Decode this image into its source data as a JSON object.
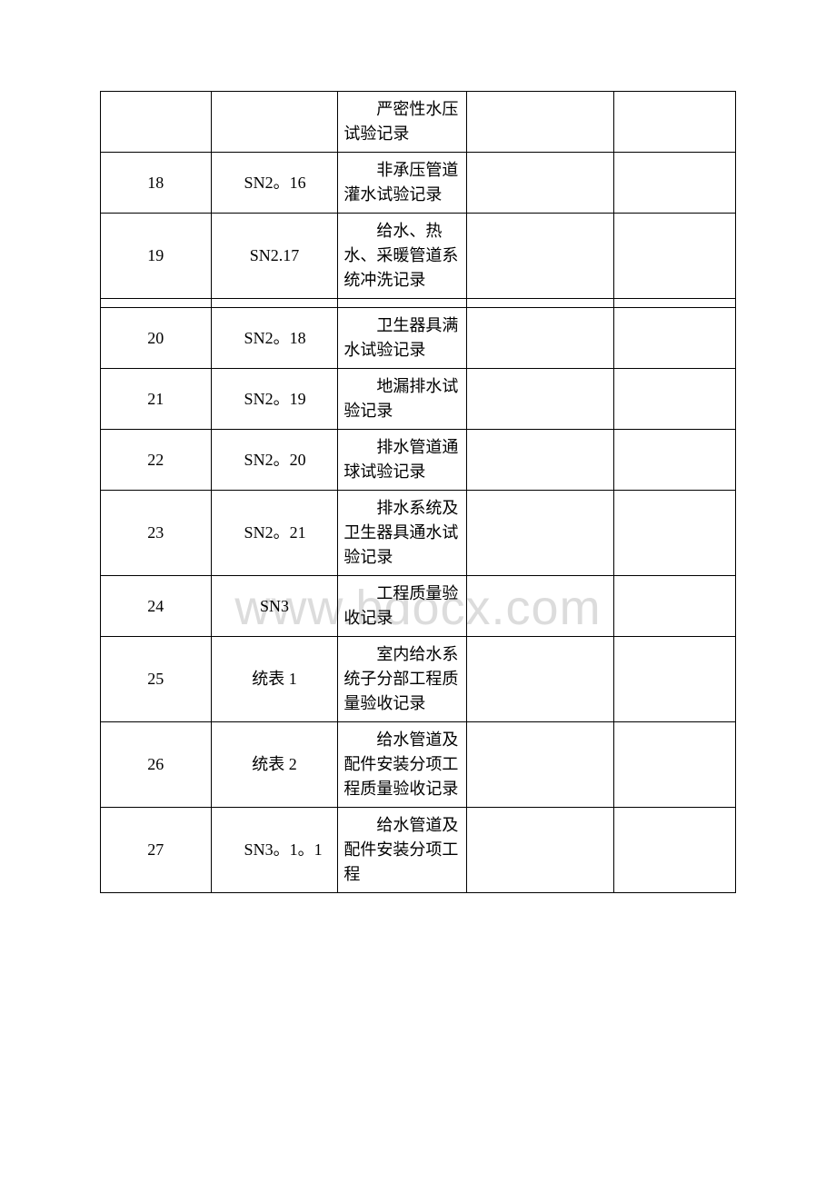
{
  "watermark": "www.bdocx.com",
  "columns": {
    "c1_width": 120,
    "c2_width": 138,
    "c3_width": 140,
    "c4_width": 160,
    "c5_width": 132
  },
  "rows": [
    {
      "n": "",
      "code": "",
      "codeClass": "",
      "desc": "严密性水压试验记录"
    },
    {
      "n": "18",
      "code": "　SN2。16",
      "codeClass": "c2-pad",
      "desc": "非承压管道灌水试验记录"
    },
    {
      "n": "19",
      "code": "SN2.17",
      "codeClass": "c2-center",
      "desc": "给水、热水、采暖管道系统冲洗记录"
    },
    {
      "spacer": true
    },
    {
      "n": "20",
      "code": "　SN2。18",
      "codeClass": "c2-pad",
      "desc": "卫生器具满水试验记录"
    },
    {
      "n": "21",
      "code": "　SN2。19",
      "codeClass": "c2-pad",
      "desc": "地漏排水试验记录"
    },
    {
      "n": "22",
      "code": "　SN2。20",
      "codeClass": "c2-pad",
      "desc": "排水管道通球试验记录"
    },
    {
      "n": "23",
      "code": "　SN2。21",
      "codeClass": "c2-pad",
      "desc": "排水系统及卫生器具通水试验记录"
    },
    {
      "n": "24",
      "code": "SN3",
      "codeClass": "c2-center",
      "desc": "工程质量验收记录"
    },
    {
      "n": "25",
      "code": "统表 1",
      "codeClass": "c2-center",
      "desc": "室内给水系统子分部工程质量验收记录"
    },
    {
      "n": "26",
      "code": "统表 2",
      "codeClass": "c2-center",
      "desc": "给水管道及配件安装分项工程质量验收记录"
    },
    {
      "n": "27",
      "code": "　SN3。1。1",
      "codeClass": "c2-pad",
      "desc": "给水管道及配件安装分项工程"
    }
  ]
}
